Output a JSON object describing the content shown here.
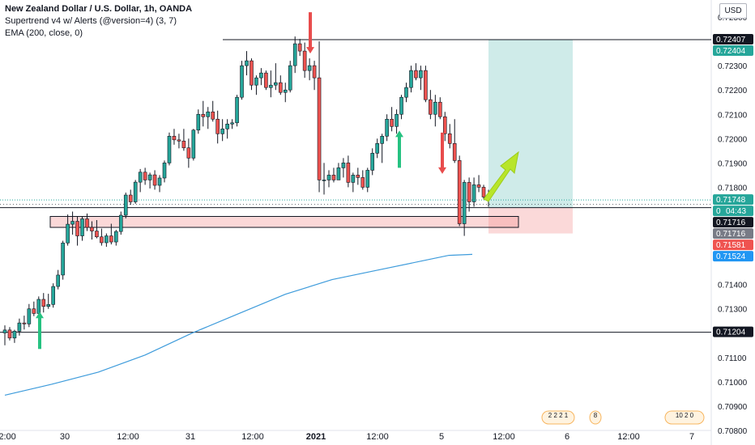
{
  "legend": {
    "title": "New Zealand Dollar / U.S. Dollar, 1h, OANDA",
    "indicator1": "Supertrend v4 w/ Alerts (@version=4) (3, 7)",
    "indicator2": "EMA (200, close, 0)"
  },
  "currency": "USD",
  "chart_data": {
    "type": "candlestick",
    "y_range": [
      0.708,
      0.7257
    ],
    "y_ticks": [
      "0.72500",
      "0.72300",
      "0.72200",
      "0.72100",
      "0.72000",
      "0.71900",
      "0.71800",
      "0.71400",
      "0.71300",
      "0.71100",
      "0.71000",
      "0.70900",
      "0.70800"
    ],
    "x_ticks": [
      "12:00",
      "30",
      "12:00",
      "31",
      "12:00",
      "2021",
      "12:00",
      "5",
      "12:00",
      "6",
      "12:00",
      "7"
    ],
    "price_badges": [
      {
        "label": "0.72407",
        "price": 0.72407,
        "bg": "#131722",
        "fg": "#ffffff"
      },
      {
        "label": "0.72404",
        "price": 0.72404,
        "bg": "#26a69a",
        "fg": "#ffffff"
      },
      {
        "label": "0.71748",
        "price": 0.71748,
        "bg": "#26a69a",
        "fg": "#ffffff"
      },
      {
        "label": "0",
        "label2": "04:43",
        "price": 0.71716,
        "bg": "#26a69a",
        "fg": "#ffffff"
      },
      {
        "label": "0.71716",
        "price": 0.71716,
        "bg": "#131722",
        "fg": "#ffffff"
      },
      {
        "label": "0.71716",
        "price": 0.71716,
        "bg": "#787b86",
        "fg": "#ffffff"
      },
      {
        "label": "0.71581",
        "price": 0.71581,
        "bg": "#ef5350",
        "fg": "#ffffff"
      },
      {
        "label": "0.71524",
        "price": 0.71524,
        "bg": "#2196f3",
        "fg": "#ffffff"
      },
      {
        "label": "0.71204",
        "price": 0.71204,
        "bg": "#131722",
        "fg": "#ffffff"
      }
    ],
    "horizontal_lines": [
      0.72407,
      0.71716,
      0.71204
    ],
    "support_zone": [
      0.71635,
      0.7168
    ],
    "position": {
      "entry": 0.71716,
      "target": 0.72407,
      "stop": 0.7161
    },
    "supertrend_up_signals": [
      0.71135,
      0.7188
    ],
    "supertrend_down_signals": [
      0.7237,
      0.71875
    ],
    "event_markers": [
      "2 2 2 1",
      "8",
      "10 2 0"
    ],
    "candles": [
      [
        0.71201,
        0.71232,
        0.7115,
        0.71213
      ],
      [
        0.71213,
        0.71225,
        0.7117,
        0.7118
      ],
      [
        0.7118,
        0.71214,
        0.7116,
        0.71208
      ],
      [
        0.71208,
        0.7126,
        0.7119,
        0.71242
      ],
      [
        0.71242,
        0.71272,
        0.71215,
        0.71238
      ],
      [
        0.71238,
        0.7132,
        0.71225,
        0.713
      ],
      [
        0.713,
        0.7133,
        0.7127,
        0.71281
      ],
      [
        0.71281,
        0.71351,
        0.7127,
        0.71339
      ],
      [
        0.71339,
        0.71365,
        0.71285,
        0.7131
      ],
      [
        0.7131,
        0.71362,
        0.713,
        0.71318
      ],
      [
        0.71318,
        0.71405,
        0.71305,
        0.71392
      ],
      [
        0.71392,
        0.7146,
        0.7138,
        0.71439
      ],
      [
        0.71439,
        0.7158,
        0.7142,
        0.71571
      ],
      [
        0.71571,
        0.71688,
        0.7156,
        0.71648
      ],
      [
        0.71648,
        0.717,
        0.71605,
        0.7166
      ],
      [
        0.7166,
        0.7168,
        0.7156,
        0.716
      ],
      [
        0.716,
        0.7168,
        0.7158,
        0.7167
      ],
      [
        0.7167,
        0.71692,
        0.7162,
        0.71635
      ],
      [
        0.71635,
        0.7166,
        0.71585,
        0.7162
      ],
      [
        0.7162,
        0.71665,
        0.7159,
        0.71596
      ],
      [
        0.71596,
        0.7163,
        0.7156,
        0.71572
      ],
      [
        0.71572,
        0.7161,
        0.71555,
        0.716
      ],
      [
        0.716,
        0.7165,
        0.71565,
        0.71575
      ],
      [
        0.71575,
        0.71625,
        0.7156,
        0.71618
      ],
      [
        0.71618,
        0.717,
        0.71605,
        0.71685
      ],
      [
        0.71685,
        0.71778,
        0.71672,
        0.71768
      ],
      [
        0.71768,
        0.7179,
        0.71728,
        0.7174
      ],
      [
        0.7174,
        0.7183,
        0.71732,
        0.71821
      ],
      [
        0.71821,
        0.71875,
        0.7178,
        0.71862
      ],
      [
        0.71862,
        0.7188,
        0.7181,
        0.7183
      ],
      [
        0.7183,
        0.7186,
        0.71795,
        0.71851
      ],
      [
        0.71851,
        0.7187,
        0.7179,
        0.71808
      ],
      [
        0.71808,
        0.7185,
        0.7178,
        0.71838
      ],
      [
        0.71838,
        0.7191,
        0.7182,
        0.719
      ],
      [
        0.719,
        0.72025,
        0.7189,
        0.7201
      ],
      [
        0.7201,
        0.7204,
        0.71975,
        0.71995
      ],
      [
        0.71995,
        0.7202,
        0.7196,
        0.7199
      ],
      [
        0.7199,
        0.7204,
        0.7195,
        0.71962
      ],
      [
        0.71962,
        0.72,
        0.7188,
        0.7192
      ],
      [
        0.7192,
        0.7204,
        0.7191,
        0.72035
      ],
      [
        0.72035,
        0.7212,
        0.7202,
        0.721
      ],
      [
        0.721,
        0.72155,
        0.7205,
        0.7209
      ],
      [
        0.7209,
        0.7213,
        0.7204,
        0.7211
      ],
      [
        0.7211,
        0.72155,
        0.7207,
        0.7208
      ],
      [
        0.7208,
        0.72115,
        0.7198,
        0.7202
      ],
      [
        0.7202,
        0.7208,
        0.7199,
        0.7204
      ],
      [
        0.7204,
        0.7208,
        0.72,
        0.7206
      ],
      [
        0.7206,
        0.7208,
        0.7204,
        0.72065
      ],
      [
        0.72065,
        0.7218,
        0.7205,
        0.7217
      ],
      [
        0.7217,
        0.7232,
        0.7216,
        0.723
      ],
      [
        0.723,
        0.7236,
        0.7226,
        0.7232
      ],
      [
        0.7232,
        0.7233,
        0.722,
        0.7222
      ],
      [
        0.7222,
        0.7226,
        0.7218,
        0.7225
      ],
      [
        0.7225,
        0.7229,
        0.7222,
        0.7227
      ],
      [
        0.7227,
        0.7228,
        0.722,
        0.7221
      ],
      [
        0.7221,
        0.7228,
        0.7217,
        0.7222
      ],
      [
        0.7222,
        0.7231,
        0.722,
        0.7223
      ],
      [
        0.7223,
        0.7226,
        0.7218,
        0.7219
      ],
      [
        0.7219,
        0.7223,
        0.7215,
        0.722
      ],
      [
        0.722,
        0.7232,
        0.7219,
        0.723
      ],
      [
        0.723,
        0.7242,
        0.7227,
        0.7239
      ],
      [
        0.7239,
        0.7241,
        0.7234,
        0.7236
      ],
      [
        0.7236,
        0.72395,
        0.7225,
        0.7228
      ],
      [
        0.7228,
        0.7233,
        0.7224,
        0.723
      ],
      [
        0.723,
        0.7232,
        0.722,
        0.7225
      ],
      [
        0.7225,
        0.724,
        0.7178,
        0.7183
      ],
      [
        0.7183,
        0.719,
        0.7177,
        0.7183
      ],
      [
        0.7183,
        0.7187,
        0.718,
        0.7185
      ],
      [
        0.7185,
        0.7188,
        0.7182,
        0.7183
      ],
      [
        0.7183,
        0.719,
        0.7184,
        0.7188
      ],
      [
        0.7188,
        0.7192,
        0.7184,
        0.719
      ],
      [
        0.719,
        0.7193,
        0.718,
        0.7182
      ],
      [
        0.7182,
        0.7186,
        0.7178,
        0.7185
      ],
      [
        0.7185,
        0.7188,
        0.7181,
        0.7184
      ],
      [
        0.7184,
        0.7187,
        0.7179,
        0.718
      ],
      [
        0.718,
        0.7188,
        0.7178,
        0.7187
      ],
      [
        0.7187,
        0.7196,
        0.7185,
        0.7194
      ],
      [
        0.7194,
        0.72,
        0.7192,
        0.7198
      ],
      [
        0.7198,
        0.7202,
        0.719,
        0.7201
      ],
      [
        0.7201,
        0.721,
        0.7199,
        0.7208
      ],
      [
        0.7208,
        0.7213,
        0.7203,
        0.7205
      ],
      [
        0.7205,
        0.7212,
        0.7202,
        0.721
      ],
      [
        0.721,
        0.7218,
        0.7208,
        0.7217
      ],
      [
        0.7217,
        0.7223,
        0.7215,
        0.7221
      ],
      [
        0.7221,
        0.723,
        0.7219,
        0.7228
      ],
      [
        0.7228,
        0.7231,
        0.7224,
        0.7225
      ],
      [
        0.7225,
        0.723,
        0.722,
        0.7228
      ],
      [
        0.7228,
        0.723,
        0.7215,
        0.7216
      ],
      [
        0.7216,
        0.722,
        0.7208,
        0.721
      ],
      [
        0.721,
        0.7218,
        0.7205,
        0.7215
      ],
      [
        0.7215,
        0.7217,
        0.7208,
        0.7209
      ],
      [
        0.7209,
        0.7211,
        0.7199,
        0.7202
      ],
      [
        0.7202,
        0.7206,
        0.7196,
        0.7198
      ],
      [
        0.7198,
        0.7208,
        0.719,
        0.7191
      ],
      [
        0.7191,
        0.7193,
        0.7164,
        0.7165
      ],
      [
        0.7165,
        0.7183,
        0.716,
        0.7182
      ],
      [
        0.7182,
        0.7184,
        0.717,
        0.7174
      ],
      [
        0.7174,
        0.7184,
        0.7172,
        0.7181
      ],
      [
        0.7181,
        0.7185,
        0.7178,
        0.718
      ],
      [
        0.718,
        0.7181,
        0.7175,
        0.7176
      ],
      [
        0.7176,
        0.7179,
        0.7172,
        0.7175
      ]
    ],
    "ema": [
      [
        0,
        0.70945
      ],
      [
        0.1,
        0.7099
      ],
      [
        0.2,
        0.7104
      ],
      [
        0.3,
        0.7111
      ],
      [
        0.4,
        0.712
      ],
      [
        0.5,
        0.7128
      ],
      [
        0.6,
        0.7136
      ],
      [
        0.7,
        0.7142
      ],
      [
        0.8,
        0.7146
      ],
      [
        0.9,
        0.715
      ],
      [
        0.95,
        0.7152
      ],
      [
        1.0,
        0.71524
      ]
    ]
  }
}
